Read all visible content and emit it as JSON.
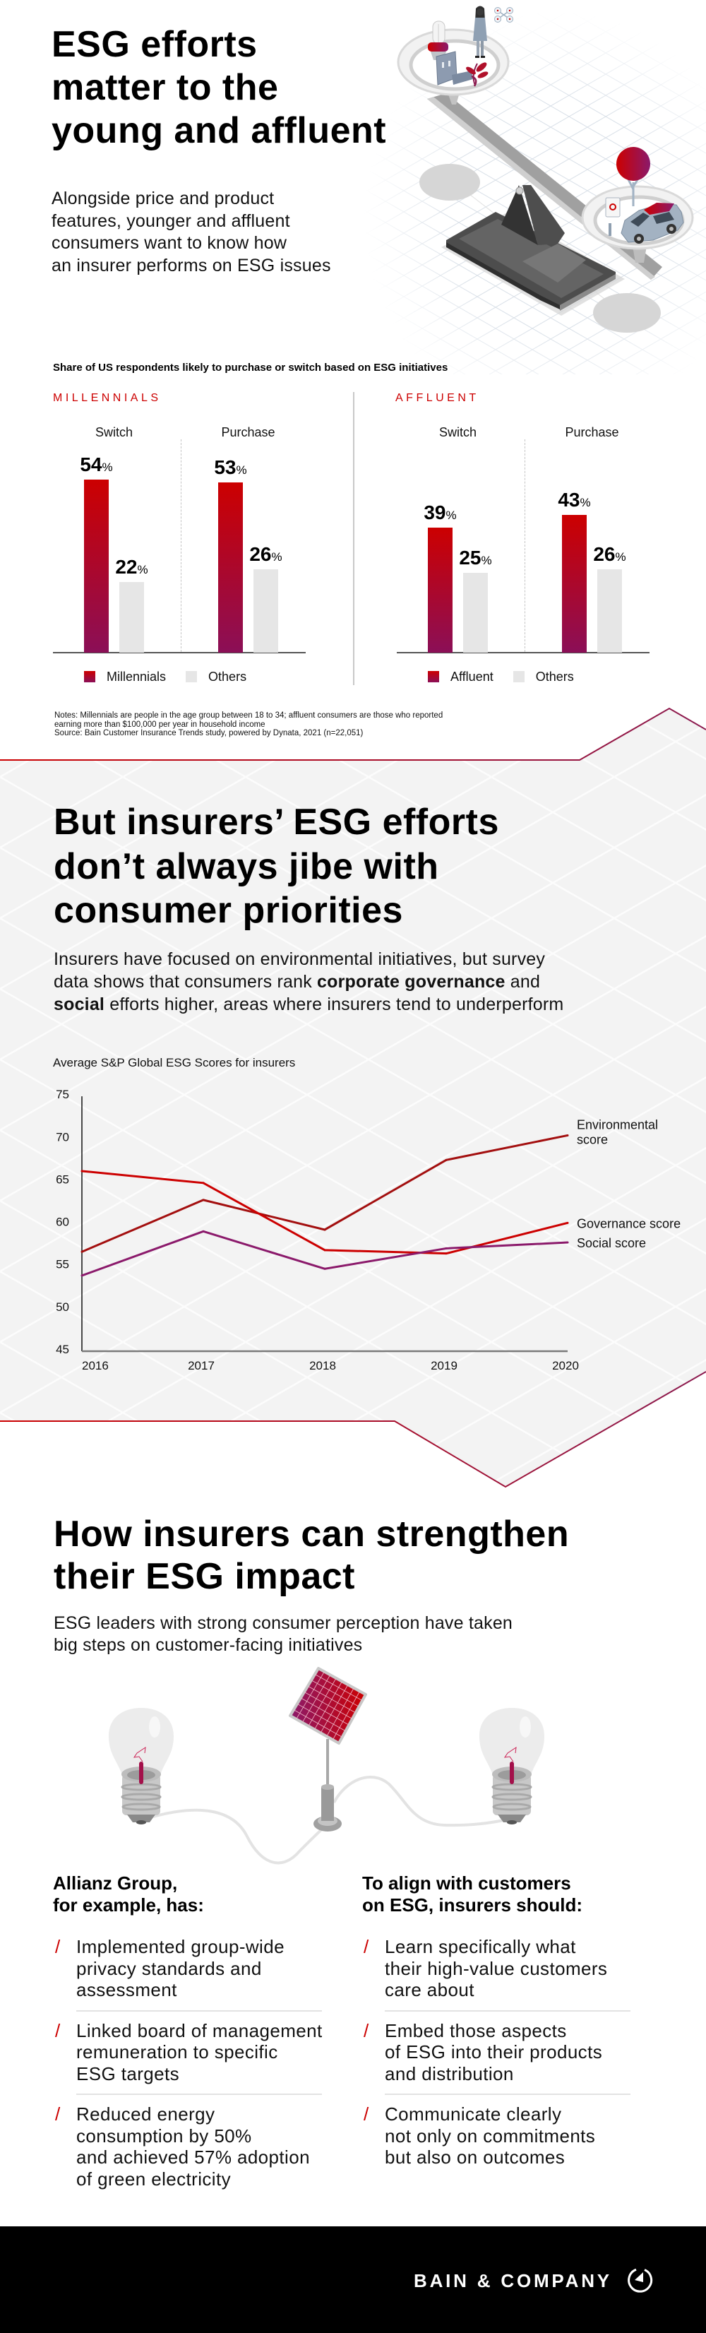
{
  "colors": {
    "accent_red": "#cc0000",
    "accent_purple": "#8b0f57",
    "others_gray": "#e6e6e6",
    "section_gray": "#f3f3f3",
    "divider_start": "#cc0000",
    "divider_end": "#8b1a4f",
    "footer_bg": "#000000"
  },
  "hero": {
    "title": "ESG efforts\nmatter to the\nyoung and affluent",
    "intro": "Alongside price and product\nfeatures, younger and affluent\nconsumers want to know how\nan insurer performs on ESG issues",
    "illustration": "esg-balance-scale-illustration"
  },
  "survey": {
    "notes": "Notes: Millennials are people in the age group between 18 to 34; affluent consumers are those who reported\nearning more than $100,000 per year in household income\nSource: Bain Customer Insurance Trends study, powered by Dynata, 2021 (n=22,051)"
  },
  "scores": {
    "title": "But insurers’ ESG efforts\ndon’t always jibe with\nconsumer priorities",
    "intro": {
      "part1": "Insurers have focused on environmental initiatives, but survey\ndata shows that consumers rank ",
      "bold1": "corporate governance",
      "part2": " and\n",
      "bold2": "social",
      "part3": " efforts higher, areas where insurers tend to underperform"
    }
  },
  "impact": {
    "title": "How insurers can strengthen\ntheir ESG impact",
    "intro": "ESG leaders with strong consumer perception have taken\nbig steps on customer-facing initiatives",
    "illustration": "solar-panel-lightbulbs-illustration",
    "bullet": "/",
    "left": {
      "heading": "Allianz Group,\nfor example, has:",
      "items": [
        "Implemented group-wide\nprivacy standards and\nassessment",
        "Linked board of management\nremuneration to specific\nESG targets",
        "Reduced energy\nconsumption by 50%\nand achieved 57% adoption\nof green electricity"
      ]
    },
    "right": {
      "heading": "To align with customers\non ESG, insurers should:",
      "items": [
        "Learn specifically what\ntheir high-value customers\ncare about",
        "Embed those aspects\nof ESG into their products\nand distribution",
        "Communicate clearly\nnot only on commitments\nbut also on outcomes"
      ]
    }
  },
  "footer": {
    "brand": "BAIN & COMPANY",
    "logo_icon": "bain-compass-icon"
  },
  "chart_data": [
    {
      "type": "bar",
      "title": "Share of US respondents likely to purchase or switch based on ESG initiatives",
      "panel": "MILLENNIALS",
      "categories": [
        "Switch",
        "Purchase"
      ],
      "series": [
        {
          "name": "Millennials",
          "values": [
            54,
            53
          ]
        },
        {
          "name": "Others",
          "values": [
            22,
            26
          ]
        }
      ],
      "unit": "%",
      "legend": "bottom"
    },
    {
      "type": "bar",
      "title": "Share of US respondents likely to purchase or switch based on ESG initiatives",
      "panel": "AFFLUENT",
      "categories": [
        "Switch",
        "Purchase"
      ],
      "series": [
        {
          "name": "Affluent",
          "values": [
            39,
            43
          ]
        },
        {
          "name": "Others",
          "values": [
            25,
            26
          ]
        }
      ],
      "unit": "%",
      "legend": "bottom"
    },
    {
      "type": "line",
      "title": "Average S&P Global ESG Scores for insurers",
      "x": [
        2016,
        2017,
        2018,
        2019,
        2020
      ],
      "xlabel": "",
      "ylabel": "",
      "ylim": [
        45,
        75
      ],
      "yticks": [
        75,
        70,
        65,
        60,
        55,
        50,
        45
      ],
      "grid": false,
      "legend": "right",
      "series": [
        {
          "name": "Environmental score",
          "label": "Environmental\nscore",
          "values": [
            56.7,
            62.8,
            59.3,
            67.5,
            70.4
          ],
          "color": "#a30f0f"
        },
        {
          "name": "Governance score",
          "label": "Governance score",
          "values": [
            66.2,
            64.8,
            56.9,
            56.5,
            60.1
          ],
          "color": "#cc0000"
        },
        {
          "name": "Social score",
          "label": "Social score",
          "values": [
            53.9,
            59.1,
            54.7,
            57.1,
            57.8
          ],
          "color": "#8b1a6b"
        }
      ]
    }
  ]
}
